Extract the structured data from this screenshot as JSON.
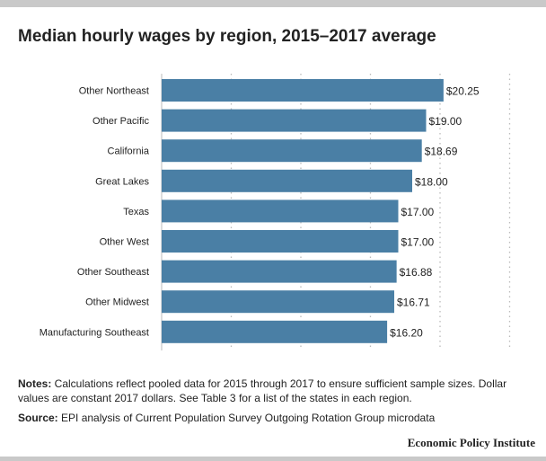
{
  "title": "Median hourly wages by region, 2015–2017 average",
  "notes": {
    "label": "Notes:",
    "text": " Calculations reflect pooled data for 2015 through 2017 to ensure sufficient sample sizes. Dollar values are constant 2017 dollars. See Table 3 for a list of the states in each region."
  },
  "source": {
    "label": "Source:",
    "text": " EPI analysis of Current Population Survey Outgoing Rotation Group microdata"
  },
  "brand": "Economic Policy Institute",
  "colors": {
    "bar": "#4a7fa5",
    "grid": "#bbbbbb",
    "rule": "#c9c9c9"
  },
  "chart_data": {
    "type": "bar",
    "orientation": "horizontal",
    "categories": [
      "Other Northeast",
      "Other Pacific",
      "California",
      "Great Lakes",
      "Texas",
      "Other West",
      "Other Southeast",
      "Other Midwest",
      "Manufacturing Southeast"
    ],
    "values": [
      20.25,
      19.0,
      18.69,
      18.0,
      17.0,
      17.0,
      16.88,
      16.71,
      16.2
    ],
    "value_labels": [
      "$20.25",
      "$19.00",
      "$18.69",
      "$18.00",
      "$17.00",
      "$17.00",
      "$16.88",
      "$16.71",
      "$16.20"
    ],
    "xlim": [
      0,
      25
    ],
    "grid": true,
    "grid_values": [
      5,
      10,
      15,
      20,
      25
    ],
    "legend": "none"
  }
}
